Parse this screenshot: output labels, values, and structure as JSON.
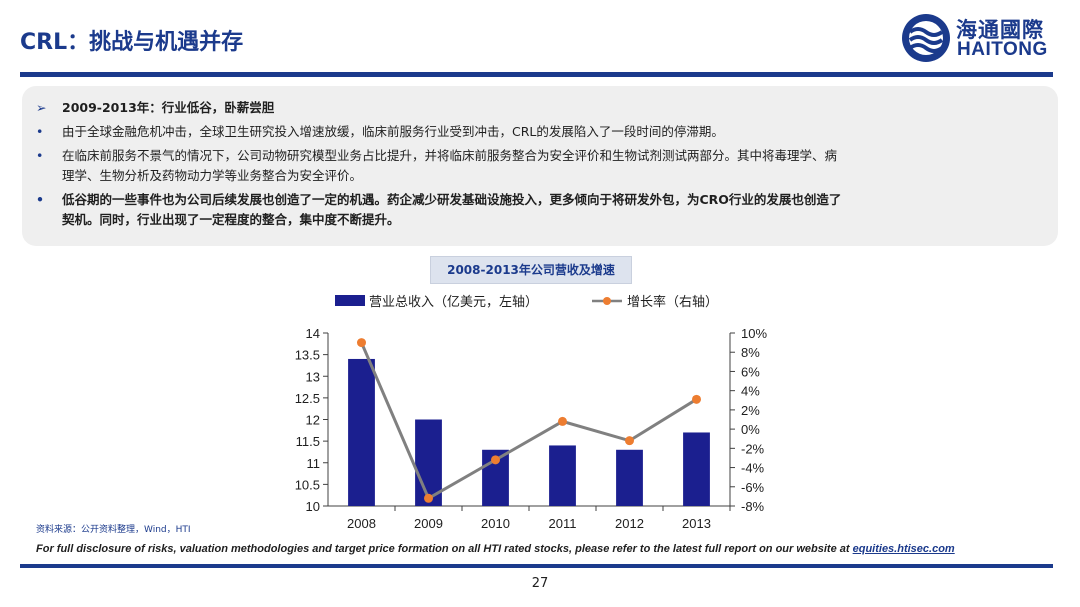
{
  "header": {
    "title": "CRL：挑战与机遇并存"
  },
  "logo": {
    "cn": "海通國際",
    "en": "HAITONG"
  },
  "summary": {
    "heading": "2009-2013年：行业低谷，卧薪尝胆",
    "bullets": [
      "由于全球金融危机冲击，全球卫生研究投入增速放缓，临床前服务行业受到冲击，CRL的发展陷入了一段时间的停滞期。",
      "在临床前服务不景气的情况下，公司动物研究模型业务占比提升，并将临床前服务整合为安全评价和生物试剂测试两部分。其中将毒理学、病",
      "理学、生物分析及药物动力学等业务整合为安全评价。",
      "低谷期的一些事件也为公司后续发展也创造了一定的机遇。药企减少研发基础设施投入，更多倾向于将研发外包，为CRO行业的发展也创造了",
      "契机。同时，行业出现了一定程度的整合，集中度不断提升。"
    ]
  },
  "chart_title": "2008-2013年公司营收及增速",
  "chart_data": {
    "type": "bar",
    "categories": [
      "2008",
      "2009",
      "2010",
      "2011",
      "2012",
      "2013"
    ],
    "series": [
      {
        "name": "营业总收入（亿美元，左轴）",
        "type": "bar",
        "axis": "left",
        "values": [
          13.4,
          12.0,
          11.3,
          11.4,
          11.3,
          11.7
        ],
        "color": "#1b1f8f"
      },
      {
        "name": "增长率（右轴）",
        "type": "line",
        "axis": "right",
        "values": [
          9.0,
          -7.2,
          -3.2,
          0.8,
          -1.2,
          3.1
        ],
        "color": "#808080",
        "marker_color": "#ed7d31"
      }
    ],
    "left_axis": {
      "min": 10,
      "max": 14,
      "ticks": [
        "10",
        "10.5",
        "11",
        "11.5",
        "12",
        "12.5",
        "13",
        "13.5",
        "14"
      ]
    },
    "right_axis": {
      "min": -8,
      "max": 10,
      "ticks": [
        "-8%",
        "-6%",
        "-4%",
        "-2%",
        "0%",
        "2%",
        "4%",
        "6%",
        "8%",
        "10%"
      ]
    },
    "legend_position": "top",
    "grid": false
  },
  "footer": {
    "source": "资料来源：公开资料整理，Wind，HTI",
    "disclaimer": "For full disclosure of risks, valuation methodologies and target price formation on all HTI rated stocks, please refer to the latest full report on our website at ",
    "link": "equities.htisec.com",
    "page": "27"
  }
}
